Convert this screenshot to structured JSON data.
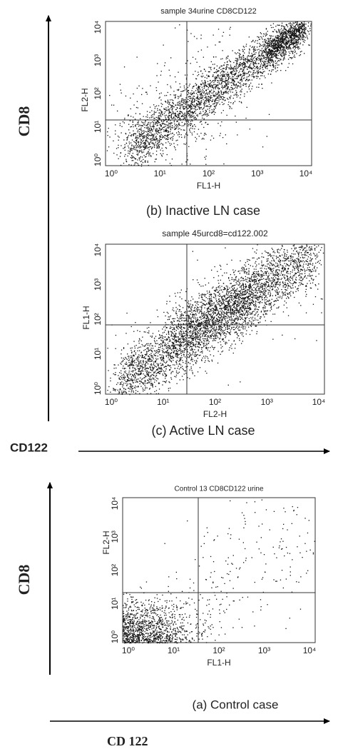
{
  "axes_top": {
    "y_label": "CD8",
    "x_label": "CD122"
  },
  "axes_bottom": {
    "y_label": "CD8",
    "x_label": "CD 122"
  },
  "panels": [
    {
      "title": "sample 34urine CD8CD122",
      "caption": "(b) Inactive LN case",
      "x_label": "FL1-H",
      "y_label": "FL2-H",
      "xticks": [
        "10⁰",
        "10¹",
        "10²",
        "10³",
        "10⁴"
      ],
      "yticks": [
        "10⁰",
        "10¹",
        "10²",
        "10³",
        "10⁴"
      ]
    },
    {
      "title": "sample 45urcd8=cd122.002",
      "caption": "(c) Active LN case",
      "x_label": "FL2-H",
      "y_label": "FL1-H",
      "xticks": [
        "10⁰",
        "10¹",
        "10²",
        "10³",
        "10⁴"
      ],
      "yticks": [
        "10⁰",
        "10¹",
        "10²",
        "10³",
        "10⁴"
      ]
    },
    {
      "title": "Control 13 CD8CD122 urine",
      "caption": "(a)  Control case",
      "x_label": "FL1-H",
      "y_label": "FL2-H",
      "xticks": [
        "10⁰",
        "10¹",
        "10²",
        "10³",
        "10⁴"
      ],
      "yticks": [
        "10⁰",
        "10¹",
        "10²",
        "10³",
        "10⁴"
      ]
    }
  ]
}
